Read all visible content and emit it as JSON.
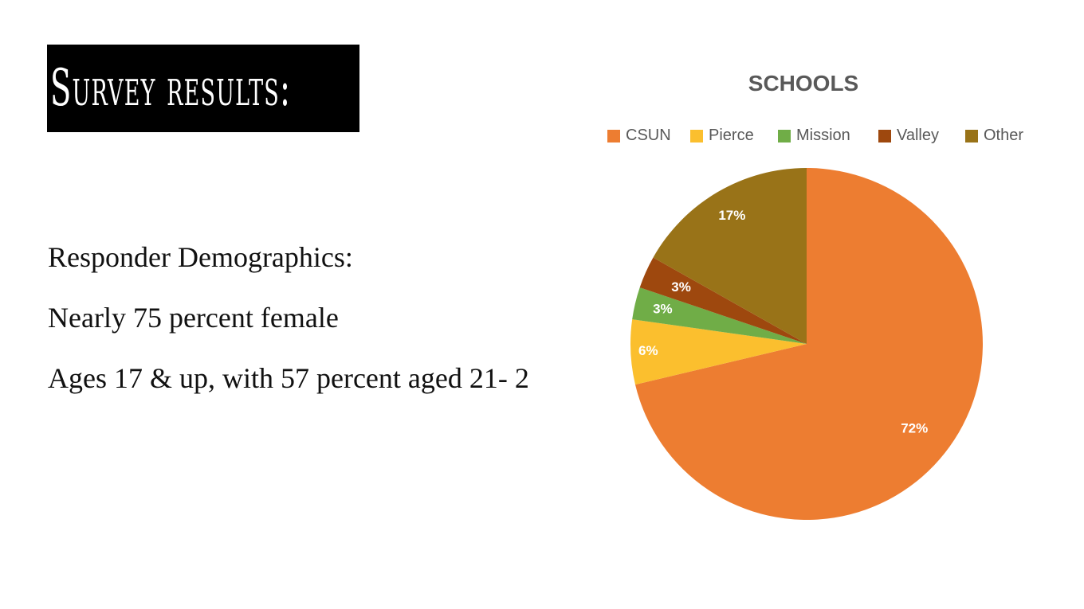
{
  "slide": {
    "title": "Survey results:",
    "bullets": [
      "Responder Demographics:",
      "Nearly 75 percent female",
      "Ages 17 & up, with 57 percent aged 21- 2"
    ]
  },
  "chart_data": {
    "type": "pie",
    "title": "SCHOOLS",
    "legend_position": "top",
    "labels": [
      "CSUN",
      "Pierce",
      "Mission",
      "Valley",
      "Other"
    ],
    "values": [
      72,
      6,
      3,
      3,
      17
    ],
    "data_labels": [
      "72%",
      "6%",
      "3%",
      "3%",
      "17%"
    ],
    "colors": [
      "#ED7D31",
      "#FBBF2E",
      "#70AD47",
      "#9E480E",
      "#997318"
    ]
  }
}
